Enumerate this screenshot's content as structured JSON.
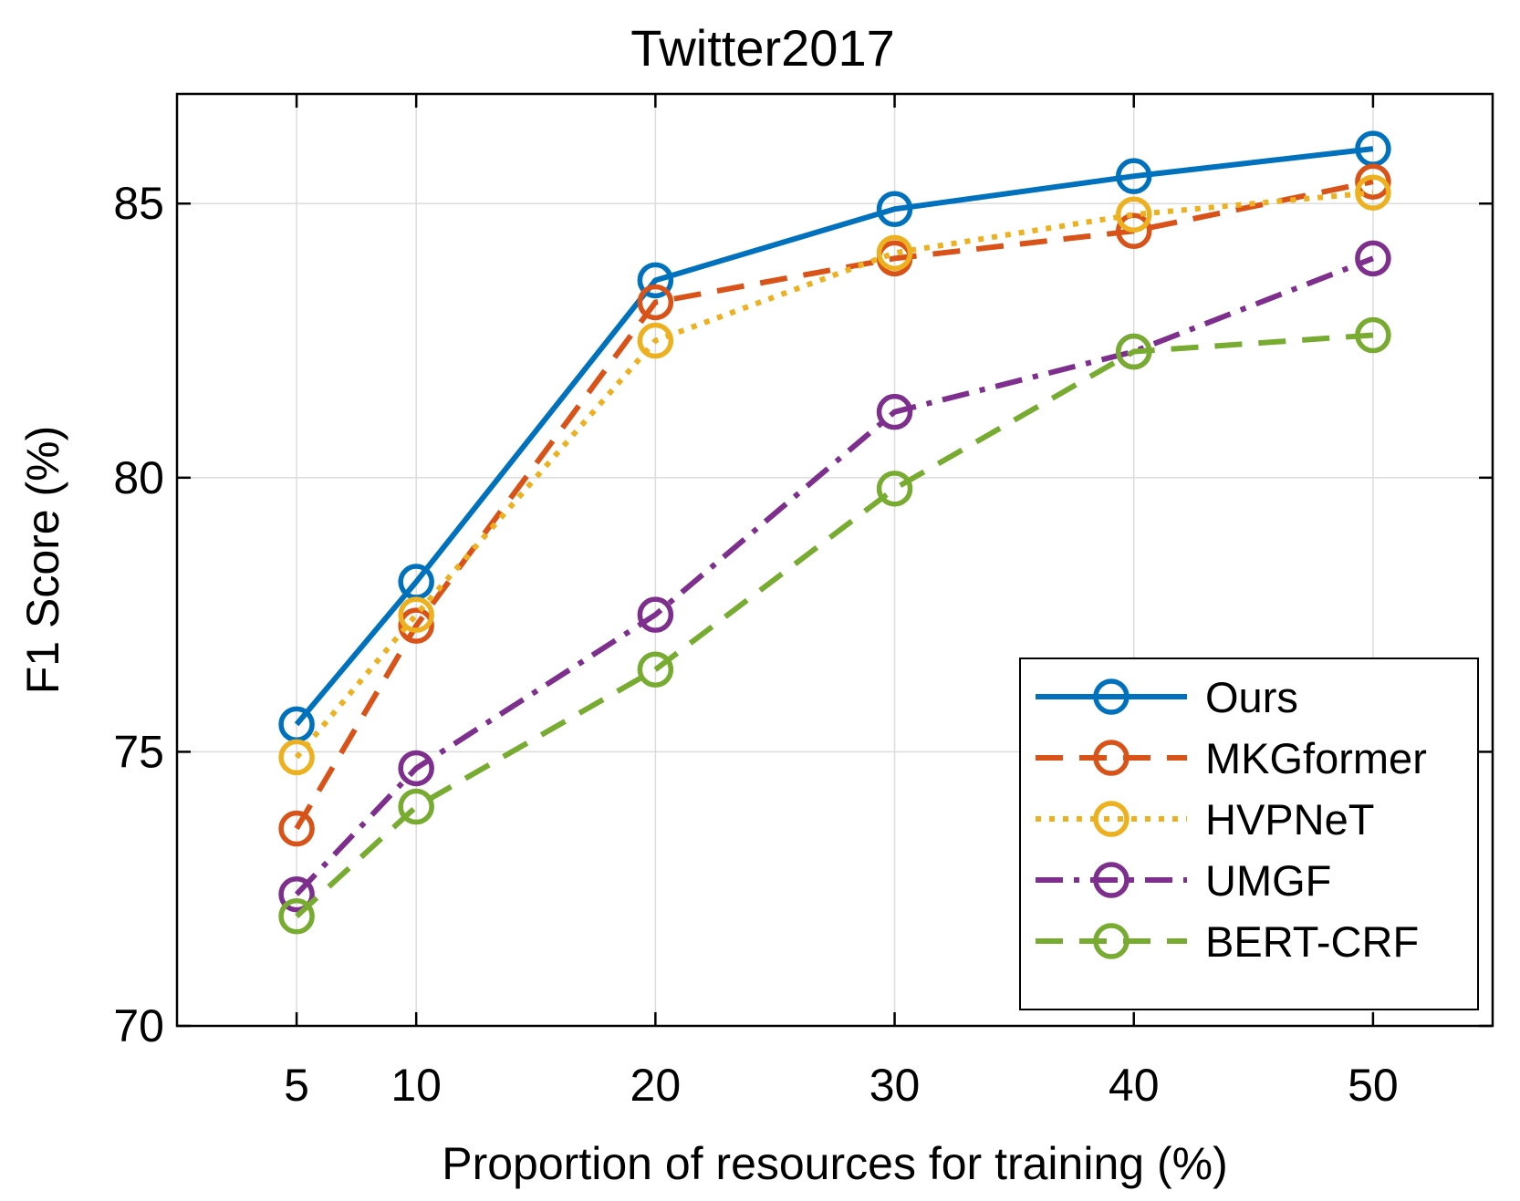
{
  "chart_data": {
    "type": "line",
    "title": "Twitter2017",
    "xlabel": "Proportion of resources for training (%)",
    "ylabel": "F1 Score (%)",
    "x": [
      5,
      10,
      20,
      30,
      40,
      50
    ],
    "xlim": [
      0,
      55
    ],
    "ylim": [
      70,
      87
    ],
    "xticks": [
      5,
      10,
      20,
      30,
      40,
      50
    ],
    "yticks": [
      70,
      75,
      80,
      85
    ],
    "grid": true,
    "legend_position": "bottom-right",
    "series": [
      {
        "name": "Ours",
        "color": "#0072BD",
        "line_style": "solid",
        "values": [
          75.5,
          78.1,
          83.6,
          84.9,
          85.5,
          86.0
        ]
      },
      {
        "name": "MKGformer",
        "color": "#D95319",
        "line_style": "dashed",
        "values": [
          73.6,
          77.3,
          83.2,
          84.0,
          84.5,
          85.4
        ]
      },
      {
        "name": "HVPNeT",
        "color": "#EDB120",
        "line_style": "dotted",
        "values": [
          74.9,
          77.5,
          82.5,
          84.1,
          84.8,
          85.2
        ]
      },
      {
        "name": "UMGF",
        "color": "#7E2F8E",
        "line_style": "dash-dot",
        "values": [
          72.4,
          74.7,
          77.5,
          81.2,
          82.3,
          84.0
        ]
      },
      {
        "name": "BERT-CRF",
        "color": "#77AC30",
        "line_style": "dashed",
        "values": [
          72.0,
          74.0,
          76.5,
          79.8,
          82.3,
          82.6
        ]
      }
    ]
  }
}
